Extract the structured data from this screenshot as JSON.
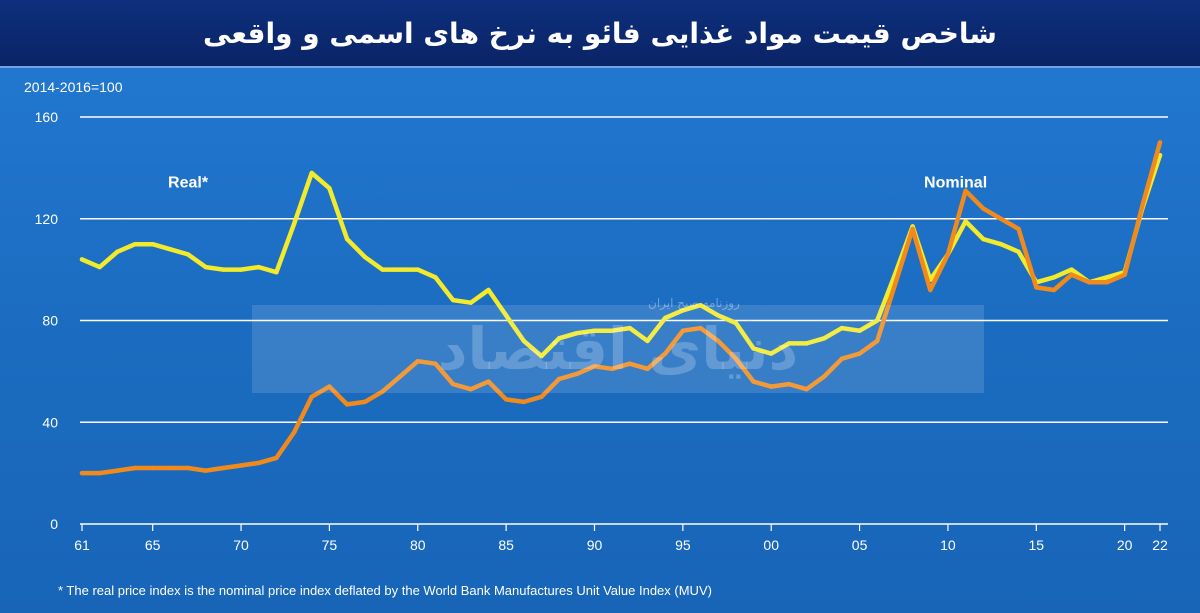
{
  "header": {
    "title": "شاخص قیمت مواد غذایی فائو به نرخ های اسمی و واقعی"
  },
  "watermark": {
    "main": "دنیای اقتصاد",
    "sub": "روزنامه صبح ایران"
  },
  "footnote": "* The real price index is the nominal price index deflated by the World Bank Manufactures Unit Value Index (MUV)",
  "chart_data": {
    "type": "line",
    "unit_label": "2014-2016=100",
    "ylim": [
      0,
      160
    ],
    "y_ticks": [
      {
        "value": 0,
        "label": "0"
      },
      {
        "value": 40,
        "label": "40"
      },
      {
        "value": 80,
        "label": "80"
      },
      {
        "value": 120,
        "label": "120"
      },
      {
        "value": 160,
        "label": "160"
      }
    ],
    "xlim": [
      1961,
      2022
    ],
    "x_ticks": [
      {
        "value": 1961,
        "label": "61"
      },
      {
        "value": 1965,
        "label": "65"
      },
      {
        "value": 1970,
        "label": "70"
      },
      {
        "value": 1975,
        "label": "75"
      },
      {
        "value": 1980,
        "label": "80"
      },
      {
        "value": 1985,
        "label": "85"
      },
      {
        "value": 1990,
        "label": "90"
      },
      {
        "value": 1995,
        "label": "95"
      },
      {
        "value": 2000,
        "label": "00"
      },
      {
        "value": 2005,
        "label": "05"
      },
      {
        "value": 2010,
        "label": "10"
      },
      {
        "value": 2015,
        "label": "15"
      },
      {
        "value": 2020,
        "label": "20"
      },
      {
        "value": 2022,
        "label": "22"
      }
    ],
    "grid": true,
    "colors": {
      "real": "#f2ea2a",
      "nominal": "#f08a1c",
      "grid": "#ffffff"
    },
    "series": [
      {
        "name": "Real*",
        "key": "real",
        "label_at": {
          "x": 1967,
          "y": 137
        },
        "points": [
          [
            1961,
            104
          ],
          [
            1962,
            101
          ],
          [
            1963,
            107
          ],
          [
            1964,
            110
          ],
          [
            1965,
            110
          ],
          [
            1966,
            108
          ],
          [
            1967,
            106
          ],
          [
            1968,
            101
          ],
          [
            1969,
            100
          ],
          [
            1970,
            100
          ],
          [
            1971,
            101
          ],
          [
            1972,
            99
          ],
          [
            1973,
            118
          ],
          [
            1974,
            138
          ],
          [
            1975,
            132
          ],
          [
            1976,
            112
          ],
          [
            1977,
            105
          ],
          [
            1978,
            100
          ],
          [
            1979,
            100
          ],
          [
            1980,
            100
          ],
          [
            1981,
            97
          ],
          [
            1982,
            88
          ],
          [
            1983,
            87
          ],
          [
            1984,
            92
          ],
          [
            1985,
            82
          ],
          [
            1986,
            72
          ],
          [
            1987,
            66
          ],
          [
            1988,
            73
          ],
          [
            1989,
            75
          ],
          [
            1990,
            76
          ],
          [
            1991,
            76
          ],
          [
            1992,
            77
          ],
          [
            1993,
            72
          ],
          [
            1994,
            81
          ],
          [
            1995,
            84
          ],
          [
            1996,
            86
          ],
          [
            1997,
            82
          ],
          [
            1998,
            79
          ],
          [
            1999,
            69
          ],
          [
            2000,
            67
          ],
          [
            2001,
            71
          ],
          [
            2002,
            71
          ],
          [
            2003,
            73
          ],
          [
            2004,
            77
          ],
          [
            2005,
            76
          ],
          [
            2006,
            80
          ],
          [
            2007,
            98
          ],
          [
            2008,
            117
          ],
          [
            2009,
            96
          ],
          [
            2010,
            106
          ],
          [
            2011,
            119
          ],
          [
            2012,
            112
          ],
          [
            2013,
            110
          ],
          [
            2014,
            107
          ],
          [
            2015,
            95
          ],
          [
            2016,
            97
          ],
          [
            2017,
            100
          ],
          [
            2018,
            95
          ],
          [
            2019,
            97
          ],
          [
            2020,
            99
          ],
          [
            2021,
            124
          ],
          [
            2022,
            145
          ]
        ]
      },
      {
        "name": "Nominal",
        "key": "nominal",
        "label_at": {
          "x": 2011,
          "y": 137
        },
        "points": [
          [
            1961,
            20
          ],
          [
            1962,
            20
          ],
          [
            1963,
            21
          ],
          [
            1964,
            22
          ],
          [
            1965,
            22
          ],
          [
            1966,
            22
          ],
          [
            1967,
            22
          ],
          [
            1968,
            21
          ],
          [
            1969,
            22
          ],
          [
            1970,
            23
          ],
          [
            1971,
            24
          ],
          [
            1972,
            26
          ],
          [
            1973,
            36
          ],
          [
            1974,
            50
          ],
          [
            1975,
            54
          ],
          [
            1976,
            47
          ],
          [
            1977,
            48
          ],
          [
            1978,
            52
          ],
          [
            1979,
            58
          ],
          [
            1980,
            64
          ],
          [
            1981,
            63
          ],
          [
            1982,
            55
          ],
          [
            1983,
            53
          ],
          [
            1984,
            56
          ],
          [
            1985,
            49
          ],
          [
            1986,
            48
          ],
          [
            1987,
            50
          ],
          [
            1988,
            57
          ],
          [
            1989,
            59
          ],
          [
            1990,
            62
          ],
          [
            1991,
            61
          ],
          [
            1992,
            63
          ],
          [
            1993,
            61
          ],
          [
            1994,
            67
          ],
          [
            1995,
            76
          ],
          [
            1996,
            77
          ],
          [
            1997,
            72
          ],
          [
            1998,
            65
          ],
          [
            1999,
            56
          ],
          [
            2000,
            54
          ],
          [
            2001,
            55
          ],
          [
            2002,
            53
          ],
          [
            2003,
            58
          ],
          [
            2004,
            65
          ],
          [
            2005,
            67
          ],
          [
            2006,
            72
          ],
          [
            2007,
            94
          ],
          [
            2008,
            116
          ],
          [
            2009,
            92
          ],
          [
            2010,
            106
          ],
          [
            2011,
            131
          ],
          [
            2012,
            124
          ],
          [
            2013,
            120
          ],
          [
            2014,
            116
          ],
          [
            2015,
            93
          ],
          [
            2016,
            92
          ],
          [
            2017,
            98
          ],
          [
            2018,
            95
          ],
          [
            2019,
            95
          ],
          [
            2020,
            98
          ],
          [
            2021,
            125
          ],
          [
            2022,
            150
          ]
        ]
      }
    ]
  }
}
